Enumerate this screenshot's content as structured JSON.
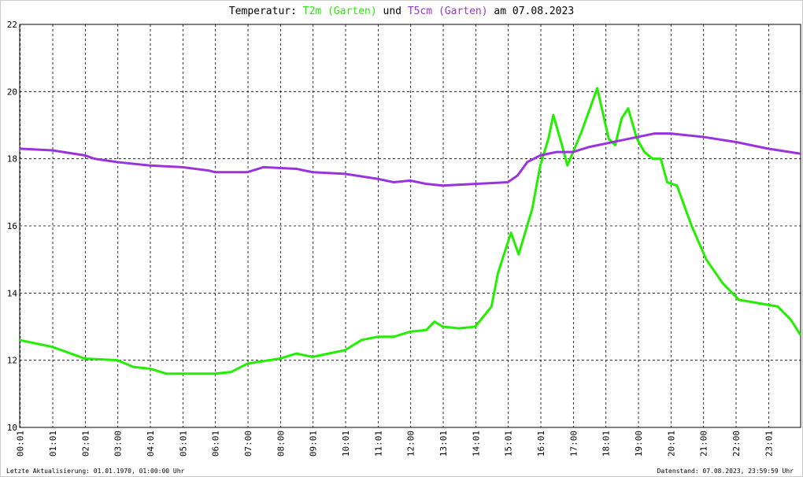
{
  "chart_data": {
    "type": "line",
    "title_prefix": "Temperatur:",
    "title_joiner": "und",
    "title_suffix": "am 07.08.2023",
    "footer_left": "Letzte Aktualisierung: 01.01.1970, 01:00:00 Uhr",
    "footer_right": "Datenstand: 07.08.2023, 23:59:59 Uhr",
    "xlim": [
      0,
      1440
    ],
    "xticks": [
      {
        "value": 1,
        "label": "00:01"
      },
      {
        "value": 61,
        "label": "01:01"
      },
      {
        "value": 121,
        "label": "02:01"
      },
      {
        "value": 181,
        "label": "03:00"
      },
      {
        "value": 241,
        "label": "04:01"
      },
      {
        "value": 301,
        "label": "05:01"
      },
      {
        "value": 361,
        "label": "06:01"
      },
      {
        "value": 421,
        "label": "07:00"
      },
      {
        "value": 481,
        "label": "08:00"
      },
      {
        "value": 541,
        "label": "09:01"
      },
      {
        "value": 601,
        "label": "10:01"
      },
      {
        "value": 661,
        "label": "11:01"
      },
      {
        "value": 721,
        "label": "12:00"
      },
      {
        "value": 781,
        "label": "13:01"
      },
      {
        "value": 841,
        "label": "14:01"
      },
      {
        "value": 901,
        "label": "15:01"
      },
      {
        "value": 961,
        "label": "16:01"
      },
      {
        "value": 1021,
        "label": "17:00"
      },
      {
        "value": 1081,
        "label": "18:01"
      },
      {
        "value": 1141,
        "label": "19:00"
      },
      {
        "value": 1201,
        "label": "20:01"
      },
      {
        "value": 1261,
        "label": "21:00"
      },
      {
        "value": 1321,
        "label": "22:00"
      },
      {
        "value": 1381,
        "label": "23:01"
      }
    ],
    "ylim": [
      10,
      22
    ],
    "yticks": [
      10,
      12,
      14,
      16,
      18,
      20,
      22
    ],
    "grid": true,
    "series": [
      {
        "name": "T2m (Garten)",
        "color": "#22ee00",
        "x": [
          0,
          60,
          120,
          180,
          210,
          240,
          270,
          360,
          390,
          420,
          480,
          510,
          540,
          570,
          600,
          630,
          660,
          690,
          720,
          750,
          765,
          780,
          810,
          840,
          870,
          882,
          906,
          920,
          945,
          960,
          975,
          984,
          1000,
          1010,
          1036,
          1065,
          1086,
          1098,
          1110,
          1122,
          1138,
          1152,
          1167,
          1182,
          1194,
          1212,
          1239,
          1266,
          1296,
          1326,
          1362,
          1398,
          1422,
          1440
        ],
        "values": [
          12.6,
          12.4,
          12.05,
          12.0,
          11.8,
          11.75,
          11.6,
          11.6,
          11.65,
          11.9,
          12.05,
          12.2,
          12.1,
          12.2,
          12.3,
          12.6,
          12.7,
          12.7,
          12.85,
          12.9,
          13.15,
          13.0,
          12.95,
          13.0,
          13.6,
          14.6,
          15.8,
          15.15,
          16.5,
          17.8,
          18.6,
          19.3,
          18.4,
          17.8,
          18.8,
          20.1,
          18.6,
          18.4,
          19.2,
          19.5,
          18.6,
          18.2,
          18.0,
          18.0,
          17.3,
          17.2,
          16.0,
          15.0,
          14.3,
          13.8,
          13.7,
          13.6,
          13.2,
          12.75
        ]
      },
      {
        "name": "T5cm (Garten)",
        "color": "#9933dd",
        "x": [
          0,
          60,
          120,
          138,
          180,
          240,
          300,
          348,
          360,
          420,
          450,
          510,
          540,
          600,
          660,
          690,
          720,
          750,
          780,
          840,
          900,
          918,
          936,
          960,
          990,
          1020,
          1050,
          1080,
          1110,
          1140,
          1170,
          1200,
          1260,
          1320,
          1350,
          1380,
          1440
        ],
        "values": [
          18.3,
          18.25,
          18.1,
          18.0,
          17.9,
          17.8,
          17.75,
          17.65,
          17.6,
          17.6,
          17.75,
          17.7,
          17.6,
          17.55,
          17.4,
          17.3,
          17.35,
          17.25,
          17.2,
          17.25,
          17.3,
          17.5,
          17.9,
          18.1,
          18.2,
          18.2,
          18.35,
          18.45,
          18.55,
          18.65,
          18.75,
          18.75,
          18.65,
          18.5,
          18.4,
          18.3,
          18.15
        ]
      }
    ]
  }
}
